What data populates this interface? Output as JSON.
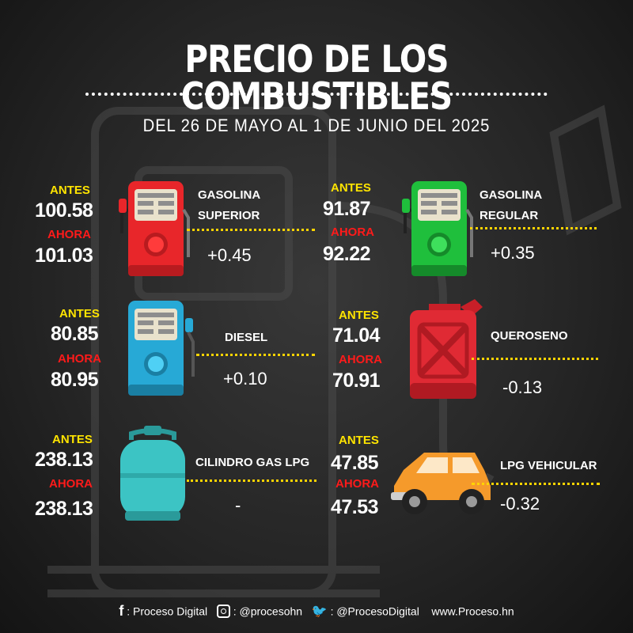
{
  "title": "PRECIO DE LOS COMBUSTIBLES",
  "subtitle": "DEL 26 DE MAYO AL 1 DE JUNIO DEL 2025",
  "labels": {
    "before": "ANTES",
    "now": "AHORA"
  },
  "fuels": [
    {
      "name_line1": "GASOLINA",
      "name_line2": "SUPERIOR",
      "before": "100.58",
      "now": "101.03",
      "change": "+0.45",
      "icon": "red-fuel-pump-icon",
      "color": "#e8262a"
    },
    {
      "name_line1": "GASOLINA",
      "name_line2": "REGULAR",
      "before": "91.87",
      "now": "92.22",
      "change": "+0.35",
      "icon": "green-fuel-pump-icon",
      "color": "#1fbf3c"
    },
    {
      "name_line1": "DIESEL",
      "name_line2": "",
      "before": "80.85",
      "now": "80.95",
      "change": "+0.10",
      "icon": "blue-fuel-pump-icon",
      "color": "#27a9d6"
    },
    {
      "name_line1": "QUEROSENO",
      "name_line2": "",
      "before": "71.04",
      "now": "70.91",
      "change": "-0.13",
      "icon": "red-jerry-can-icon",
      "color": "#e02a34"
    },
    {
      "name_line1": "CILINDRO GAS LPG",
      "name_line2": "",
      "before": "238.13",
      "now": "238.13",
      "change": "-",
      "icon": "gas-cylinder-icon",
      "color": "#3cc4c4"
    },
    {
      "name_line1": "LPG VEHICULAR",
      "name_line2": "",
      "before": "47.85",
      "now": "47.53",
      "change": "-0.32",
      "icon": "orange-car-icon",
      "color": "#f59a2b"
    }
  ],
  "footer": {
    "facebook": ": Proceso Digital",
    "instagram": ": @procesohn",
    "twitter": ": @ProcesoDigital",
    "website": "www.Proceso.hn"
  }
}
